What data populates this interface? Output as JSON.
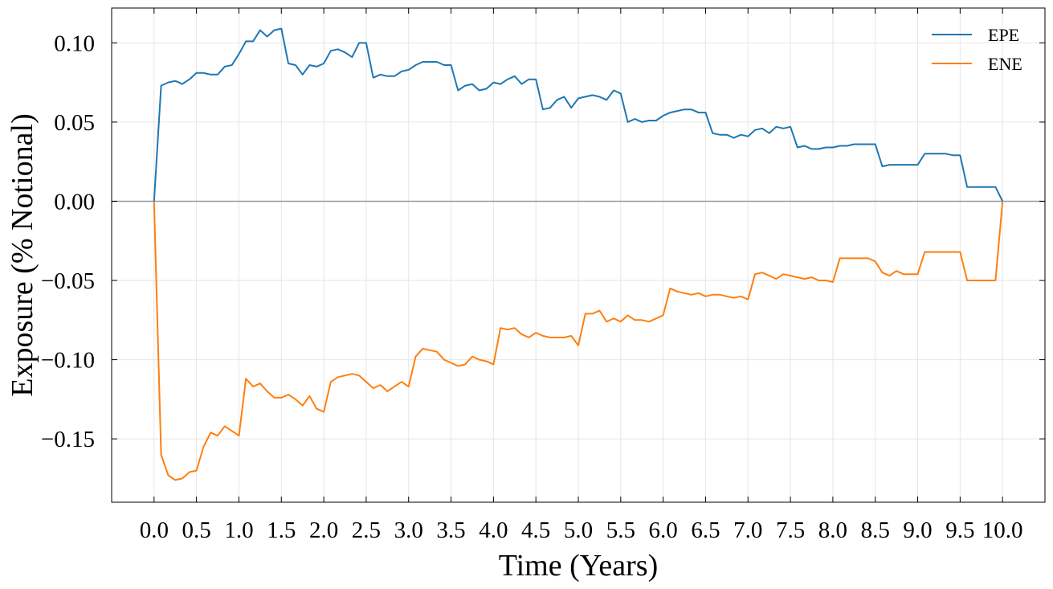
{
  "chart_data": {
    "type": "line",
    "xlabel": "Time (Years)",
    "ylabel": "Exposure (% Notional)",
    "xlim": [
      -0.5,
      10.5
    ],
    "ylim": [
      -0.19,
      0.122
    ],
    "xticks": [
      0.0,
      0.5,
      1.0,
      1.5,
      2.0,
      2.5,
      3.0,
      3.5,
      4.0,
      4.5,
      5.0,
      5.5,
      6.0,
      6.5,
      7.0,
      7.5,
      8.0,
      8.5,
      9.0,
      9.5,
      10.0
    ],
    "xtick_labels": [
      "0.0",
      "0.5",
      "1.0",
      "1.5",
      "2.0",
      "2.5",
      "3.0",
      "3.5",
      "4.0",
      "4.5",
      "5.0",
      "5.5",
      "6.0",
      "6.5",
      "7.0",
      "7.5",
      "8.0",
      "8.5",
      "9.0",
      "9.5",
      "10.0"
    ],
    "yticks": [
      -0.15,
      -0.1,
      -0.05,
      0.0,
      0.05,
      0.1
    ],
    "ytick_labels": [
      "−0.15",
      "−0.10",
      "−0.05",
      "0.00",
      "0.05",
      "0.10"
    ],
    "grid": true,
    "zero_line": true,
    "legend_position": "top-right",
    "x": [
      0.0,
      0.083,
      0.167,
      0.25,
      0.333,
      0.417,
      0.5,
      0.583,
      0.667,
      0.75,
      0.833,
      0.917,
      1.0,
      1.083,
      1.167,
      1.25,
      1.333,
      1.417,
      1.5,
      1.583,
      1.667,
      1.75,
      1.833,
      1.917,
      2.0,
      2.083,
      2.167,
      2.25,
      2.333,
      2.417,
      2.5,
      2.583,
      2.667,
      2.75,
      2.833,
      2.917,
      3.0,
      3.083,
      3.167,
      3.25,
      3.333,
      3.417,
      3.5,
      3.583,
      3.667,
      3.75,
      3.833,
      3.917,
      4.0,
      4.083,
      4.167,
      4.25,
      4.333,
      4.417,
      4.5,
      4.583,
      4.667,
      4.75,
      4.833,
      4.917,
      5.0,
      5.083,
      5.167,
      5.25,
      5.333,
      5.417,
      5.5,
      5.583,
      5.667,
      5.75,
      5.833,
      5.917,
      6.0,
      6.083,
      6.167,
      6.25,
      6.333,
      6.417,
      6.5,
      6.583,
      6.667,
      6.75,
      6.833,
      6.917,
      7.0,
      7.083,
      7.167,
      7.25,
      7.333,
      7.417,
      7.5,
      7.583,
      7.667,
      7.75,
      7.833,
      7.917,
      8.0,
      8.083,
      8.167,
      8.25,
      8.333,
      8.417,
      8.5,
      8.583,
      8.667,
      8.75,
      8.833,
      8.917,
      9.0,
      9.083,
      9.167,
      9.25,
      9.333,
      9.417,
      9.5,
      9.583,
      9.667,
      9.75,
      9.833,
      9.917,
      10.0
    ],
    "series": [
      {
        "name": "EPE",
        "color": "#1f77b4",
        "values": [
          0.0,
          0.073,
          0.075,
          0.076,
          0.074,
          0.077,
          0.081,
          0.081,
          0.08,
          0.08,
          0.085,
          0.086,
          0.093,
          0.101,
          0.101,
          0.108,
          0.104,
          0.108,
          0.109,
          0.087,
          0.086,
          0.08,
          0.086,
          0.085,
          0.087,
          0.095,
          0.096,
          0.094,
          0.091,
          0.1,
          0.1,
          0.078,
          0.08,
          0.079,
          0.079,
          0.082,
          0.083,
          0.086,
          0.088,
          0.088,
          0.088,
          0.086,
          0.086,
          0.07,
          0.073,
          0.074,
          0.07,
          0.071,
          0.075,
          0.074,
          0.077,
          0.079,
          0.074,
          0.077,
          0.077,
          0.058,
          0.059,
          0.064,
          0.066,
          0.059,
          0.065,
          0.066,
          0.067,
          0.066,
          0.064,
          0.07,
          0.068,
          0.05,
          0.052,
          0.05,
          0.051,
          0.051,
          0.054,
          0.056,
          0.057,
          0.058,
          0.058,
          0.056,
          0.056,
          0.043,
          0.042,
          0.042,
          0.04,
          0.042,
          0.041,
          0.045,
          0.046,
          0.043,
          0.047,
          0.046,
          0.047,
          0.034,
          0.035,
          0.033,
          0.033,
          0.034,
          0.034,
          0.035,
          0.035,
          0.036,
          0.036,
          0.036,
          0.036,
          0.022,
          0.023,
          0.023,
          0.023,
          0.023,
          0.023,
          0.03,
          0.03,
          0.03,
          0.03,
          0.029,
          0.029,
          0.009,
          0.009,
          0.009,
          0.009,
          0.009,
          0.0
        ]
      },
      {
        "name": "ENE",
        "color": "#ff7f0e",
        "values": [
          0.0,
          -0.16,
          -0.173,
          -0.176,
          -0.175,
          -0.171,
          -0.17,
          -0.155,
          -0.146,
          -0.148,
          -0.142,
          -0.145,
          -0.148,
          -0.112,
          -0.117,
          -0.115,
          -0.12,
          -0.124,
          -0.124,
          -0.122,
          -0.125,
          -0.129,
          -0.123,
          -0.131,
          -0.133,
          -0.114,
          -0.111,
          -0.11,
          -0.109,
          -0.11,
          -0.114,
          -0.118,
          -0.116,
          -0.12,
          -0.117,
          -0.114,
          -0.117,
          -0.098,
          -0.093,
          -0.094,
          -0.095,
          -0.1,
          -0.102,
          -0.104,
          -0.103,
          -0.098,
          -0.1,
          -0.101,
          -0.103,
          -0.08,
          -0.081,
          -0.08,
          -0.084,
          -0.086,
          -0.083,
          -0.085,
          -0.086,
          -0.086,
          -0.086,
          -0.085,
          -0.091,
          -0.071,
          -0.071,
          -0.069,
          -0.076,
          -0.074,
          -0.076,
          -0.072,
          -0.075,
          -0.075,
          -0.076,
          -0.074,
          -0.072,
          -0.055,
          -0.057,
          -0.058,
          -0.059,
          -0.058,
          -0.06,
          -0.059,
          -0.059,
          -0.06,
          -0.061,
          -0.06,
          -0.062,
          -0.046,
          -0.045,
          -0.047,
          -0.049,
          -0.046,
          -0.047,
          -0.048,
          -0.049,
          -0.048,
          -0.05,
          -0.05,
          -0.051,
          -0.036,
          -0.036,
          -0.036,
          -0.036,
          -0.036,
          -0.038,
          -0.045,
          -0.047,
          -0.044,
          -0.046,
          -0.046,
          -0.046,
          -0.032,
          -0.032,
          -0.032,
          -0.032,
          -0.032,
          -0.032,
          -0.05,
          -0.05,
          -0.05,
          -0.05,
          -0.05,
          0.0
        ]
      }
    ]
  }
}
